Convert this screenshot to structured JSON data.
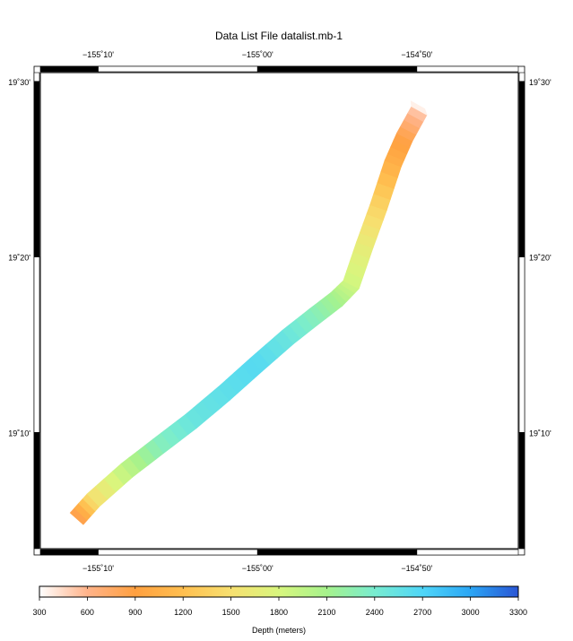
{
  "title": "Data List File datalist.mb-1",
  "map": {
    "lon_range": [
      -155.2272,
      -154.7272
    ],
    "lat_range": [
      19.0563,
      19.5083
    ],
    "frame_style": "checkerboard-fancy",
    "lon_ticks": [
      {
        "value": -155.16667,
        "label": "−155˚10'"
      },
      {
        "value": -155.0,
        "label": "−155˚00'"
      },
      {
        "value": -154.83333,
        "label": "−154˚50'"
      }
    ],
    "lat_ticks": [
      {
        "value": 19.5,
        "label": "19˚30'"
      },
      {
        "value": 19.33333,
        "label": "19˚20'"
      },
      {
        "value": 19.16667,
        "label": "19˚10'"
      }
    ],
    "frame_lon_breaks": [
      -155.2272,
      -155.16667,
      -155.0,
      -154.83333,
      -154.7272
    ],
    "frame_lat_breaks": [
      19.0563,
      19.16667,
      19.33333,
      19.5,
      19.5083
    ],
    "survey_swath": {
      "description": "multibeam bathymetry swath",
      "track": [
        {
          "lon": -155.18911,
          "lat": 19.08477,
          "depth": 760
        },
        {
          "lon": -155.17184,
          "lat": 19.10231,
          "depth": 1500
        },
        {
          "lon": -155.1368,
          "lat": 19.13051,
          "depth": 1950
        },
        {
          "lon": -155.10378,
          "lat": 19.15358,
          "depth": 2300
        },
        {
          "lon": -155.06972,
          "lat": 19.17713,
          "depth": 2500
        },
        {
          "lon": -155.03518,
          "lat": 19.20347,
          "depth": 2580
        },
        {
          "lon": -155.00165,
          "lat": 19.2307,
          "depth": 2650
        },
        {
          "lon": -154.96813,
          "lat": 19.25725,
          "depth": 2500
        },
        {
          "lon": -154.93967,
          "lat": 19.27756,
          "depth": 2300
        },
        {
          "lon": -154.9173,
          "lat": 19.29307,
          "depth": 2100
        },
        {
          "lon": -154.90205,
          "lat": 19.30699,
          "depth": 1850
        },
        {
          "lon": -154.88782,
          "lat": 19.34461,
          "depth": 1650
        },
        {
          "lon": -154.87358,
          "lat": 19.38015,
          "depth": 1400
        },
        {
          "lon": -154.85833,
          "lat": 19.42194,
          "depth": 1050
        },
        {
          "lon": -154.84613,
          "lat": 19.44706,
          "depth": 850
        },
        {
          "lon": -154.83087,
          "lat": 19.47216,
          "depth": 500
        }
      ],
      "width_deg_lon": 0.01829,
      "end_cap": {
        "lon": -154.82986,
        "lat": 19.47634,
        "depth": 360
      }
    }
  },
  "colorbar": {
    "label": "Depth (meters)",
    "min": 300,
    "max": 3300,
    "ticks": [
      "300",
      "600",
      "900",
      "1200",
      "1500",
      "1800",
      "2100",
      "2400",
      "2700",
      "3000",
      "3300"
    ],
    "tick_values": [
      300,
      600,
      900,
      1200,
      1500,
      1800,
      2100,
      2400,
      2700,
      3000,
      3300
    ],
    "color_stops": [
      {
        "value": 300,
        "color": "#ffffff"
      },
      {
        "value": 600,
        "color": "#ffb38a"
      },
      {
        "value": 900,
        "color": "#ffa040"
      },
      {
        "value": 1200,
        "color": "#ffbf50"
      },
      {
        "value": 1500,
        "color": "#f7e070"
      },
      {
        "value": 1800,
        "color": "#d8f67e"
      },
      {
        "value": 2100,
        "color": "#a6f28c"
      },
      {
        "value": 2400,
        "color": "#78ecd0"
      },
      {
        "value": 2700,
        "color": "#4fd6f8"
      },
      {
        "value": 3000,
        "color": "#2ba6f5"
      },
      {
        "value": 3300,
        "color": "#2a55d4"
      }
    ]
  }
}
